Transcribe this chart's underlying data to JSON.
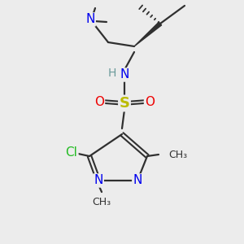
{
  "bg_color": "#ececec",
  "atom_colors": {
    "C": "#404040",
    "N": "#0000ee",
    "O": "#ee0000",
    "S": "#bbbb00",
    "Cl": "#22bb22",
    "H": "#6a9a9a"
  },
  "bond_color": "#303030",
  "figsize": [
    3.0,
    3.0
  ],
  "dpi": 100
}
